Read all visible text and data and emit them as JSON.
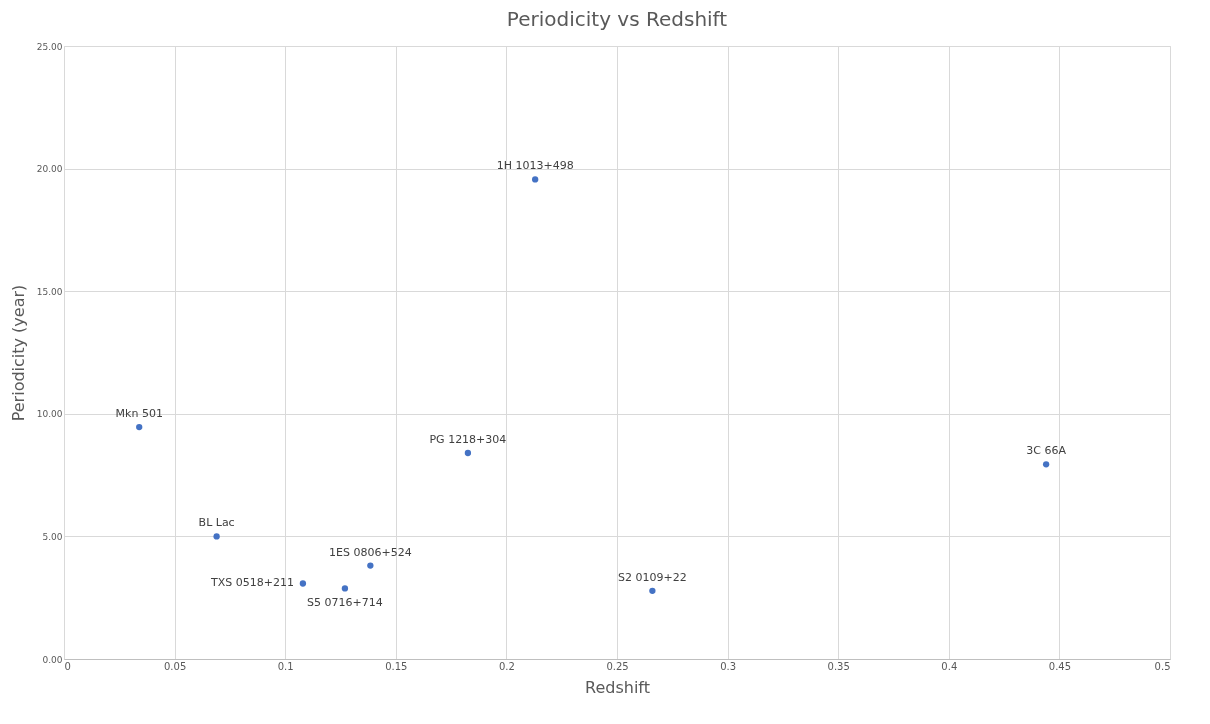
{
  "chart_data": {
    "type": "scatter",
    "title": "Periodicity vs Redshift",
    "xlabel": "Redshift",
    "ylabel": "Periodicity (year)",
    "series": [
      {
        "color": "#4472c4",
        "x": [
          0.034,
          0.069,
          0.108,
          0.127,
          0.1385,
          0.1826,
          0.213,
          0.266,
          0.444
        ],
        "values": [
          9.46,
          5.0,
          3.08,
          2.88,
          3.81,
          8.4,
          19.56,
          2.78,
          7.94
        ]
      }
    ],
    "annotations": [
      {
        "text": "Mkn 501",
        "x": 0.034,
        "y": 9.46
      },
      {
        "text": "BL Lac",
        "x": 0.069,
        "y": 5.0
      },
      {
        "text": "TXS 0518+211",
        "x": 0.108,
        "y": 3.08
      },
      {
        "text": "S5 0716+714",
        "x": 0.127,
        "y": 2.88
      },
      {
        "text": "1ES 0806+524",
        "x": 0.1385,
        "y": 3.81
      },
      {
        "text": "PG 1218+304",
        "x": 0.1826,
        "y": 8.4
      },
      {
        "text": "1H 1013+498",
        "x": 0.213,
        "y": 19.56
      },
      {
        "text": "S2 0109+22",
        "x": 0.266,
        "y": 2.78
      },
      {
        "text": "3C 66A",
        "x": 0.444,
        "y": 7.94
      }
    ],
    "xlim": [
      0,
      0.5
    ],
    "xticks": [
      0,
      0.05,
      0.1,
      0.15,
      0.2,
      0.25,
      0.3,
      0.35,
      0.4,
      0.45,
      0.5
    ],
    "ylim": [
      0,
      25
    ],
    "yticks": [
      {
        "value": 0,
        "label": "0.00"
      },
      {
        "value": 5,
        "label": "5.00"
      },
      {
        "value": 10,
        "label": "10.00"
      },
      {
        "value": 15,
        "label": "15.00"
      },
      {
        "value": 20,
        "label": "20.00"
      },
      {
        "value": 25,
        "label": "25.00"
      }
    ],
    "grid": true,
    "marker": "circle"
  }
}
